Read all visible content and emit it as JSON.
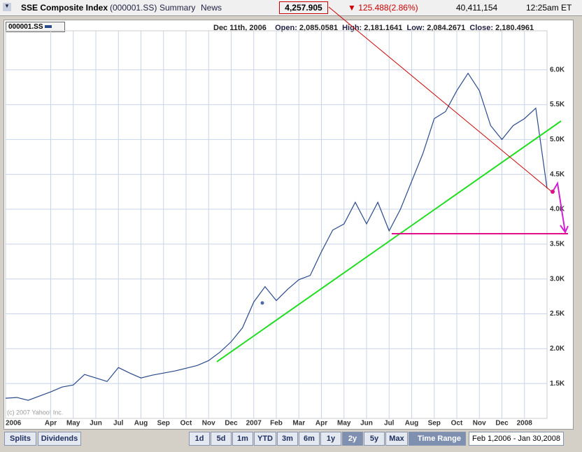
{
  "header": {
    "name": "SSE Composite Index",
    "symbol": "(000001.SS)",
    "links": [
      "Summary",
      "News"
    ],
    "last": "4,257.905",
    "change": "125.488(2.86%)",
    "volume": "40,411,154",
    "time": "12:25am ET"
  },
  "info": {
    "symbol": "000001.SS",
    "date": "Dec 11th, 2006",
    "open_label": "Open:",
    "open": "2,085.0581",
    "high_label": "High:",
    "high": "2,181.1641",
    "low_label": "Low:",
    "low": "2,084.2671",
    "close_label": "Close:",
    "close": "2,180.4961"
  },
  "chart_data": {
    "type": "line",
    "copyright": "(c) 2007 Yahoo! Inc.",
    "categories": [
      "2006",
      null,
      null,
      null,
      "Apr",
      null,
      "May",
      null,
      "Jun",
      null,
      "Jul",
      null,
      "Aug",
      null,
      "Sep",
      null,
      "Oct",
      null,
      "Nov",
      null,
      "Dec",
      null,
      "2007",
      null,
      "Feb",
      null,
      "Mar",
      null,
      "Apr",
      null,
      "May",
      null,
      "Jun",
      null,
      "Jul",
      null,
      "Aug",
      null,
      "Sep",
      null,
      "Oct",
      null,
      "Nov",
      null,
      "Dec",
      null,
      "2008",
      null,
      null
    ],
    "series": [
      {
        "name": "000001.SS",
        "color": "#2a4a8a",
        "values": [
          1290,
          1300,
          1260,
          1320,
          1380,
          1450,
          1480,
          1630,
          1580,
          1530,
          1730,
          1650,
          1580,
          1620,
          1650,
          1680,
          1720,
          1760,
          1830,
          1950,
          2100,
          2300,
          2670,
          2890,
          2690,
          2850,
          2990,
          3050,
          3390,
          3700,
          3790,
          4100,
          3790,
          4100,
          3690,
          4000,
          4400,
          4800,
          5300,
          5400,
          5700,
          5950,
          5700,
          5200,
          5000,
          5200,
          5300,
          5450,
          4300
        ]
      }
    ],
    "ylim": [
      1000,
      6700
    ],
    "yticks": [
      {
        "value": 1500,
        "label": "1.5K"
      },
      {
        "value": 2000,
        "label": "2.0K"
      },
      {
        "value": 2500,
        "label": "2.5K"
      },
      {
        "value": 3000,
        "label": "3.0K"
      },
      {
        "value": 3500,
        "label": "3.5K"
      },
      {
        "value": 4000,
        "label": "4.0K"
      },
      {
        "value": 4500,
        "label": "4.5K"
      },
      {
        "value": 5000,
        "label": "5.0K"
      },
      {
        "value": 5500,
        "label": "5.5K"
      },
      {
        "value": 6000,
        "label": "6.0K"
      }
    ],
    "grid": true
  },
  "toolbar": {
    "left": [
      "Splits",
      "Dividends"
    ],
    "ranges": [
      "1d",
      "5d",
      "1m",
      "YTD",
      "3m",
      "6m",
      "1y",
      "2y",
      "5y",
      "Max"
    ],
    "time_range": "Time Range",
    "range_value": "Feb 1,2006 - Jan 30,2008"
  }
}
